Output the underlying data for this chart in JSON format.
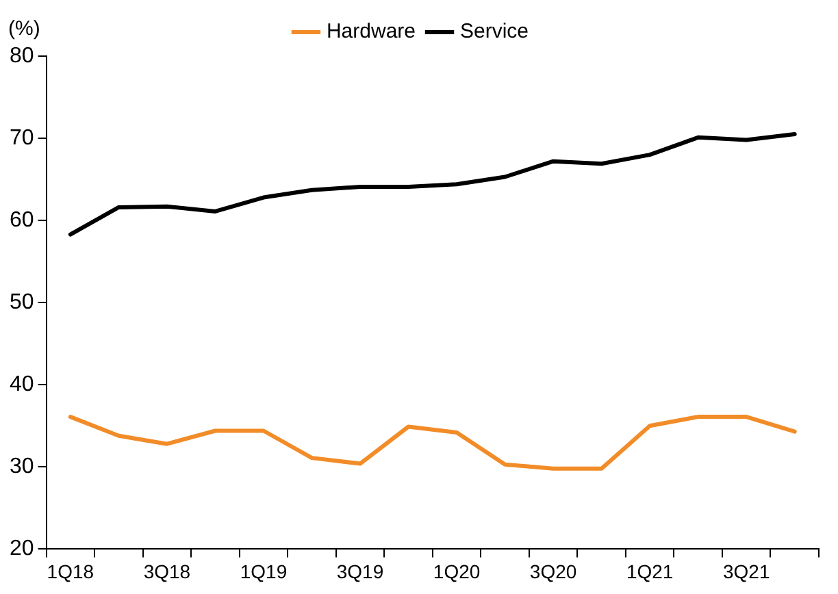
{
  "chart_data": {
    "type": "line",
    "ylabel": "(%)",
    "categories": [
      "1Q18",
      null,
      "3Q18",
      null,
      "1Q19",
      null,
      "3Q19",
      null,
      "1Q20",
      null,
      "3Q20",
      null,
      "1Q21",
      null,
      "3Q21",
      null
    ],
    "series": [
      {
        "name": "Hardware",
        "color": "#f28c28",
        "values": [
          36.1,
          33.8,
          32.8,
          34.4,
          34.4,
          31.1,
          30.4,
          34.9,
          34.2,
          30.3,
          29.8,
          29.8,
          35.0,
          36.1,
          36.1,
          34.3
        ]
      },
      {
        "name": "Service",
        "color": "#000000",
        "values": [
          58.3,
          61.6,
          61.7,
          61.1,
          62.8,
          63.7,
          64.1,
          64.1,
          64.4,
          65.3,
          67.2,
          66.9,
          68.0,
          70.1,
          69.8,
          70.5
        ]
      }
    ],
    "ylim": [
      20,
      80
    ],
    "yticks": [
      20,
      30,
      40,
      50,
      60,
      70,
      80
    ],
    "grid": false,
    "legend": "top",
    "marker": "none",
    "line_style": "solid"
  }
}
